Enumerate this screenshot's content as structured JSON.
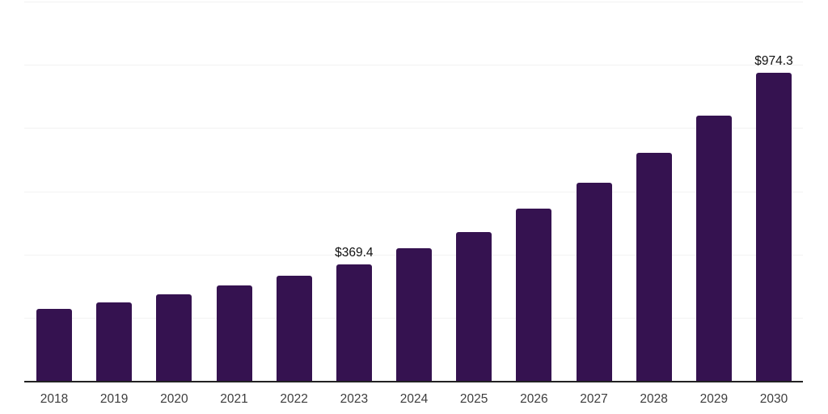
{
  "chart_data": {
    "type": "bar",
    "title": "",
    "categories": [
      "2018",
      "2019",
      "2020",
      "2021",
      "2022",
      "2023",
      "2024",
      "2025",
      "2026",
      "2027",
      "2028",
      "2029",
      "2030"
    ],
    "values": [
      228,
      248,
      275,
      301,
      332,
      369.4,
      419,
      471,
      544,
      626,
      721,
      839,
      974.3
    ],
    "value_labels": {
      "2023": "$369.4",
      "2030": "$974.3"
    },
    "unit_prefix": "$",
    "xlabel": "",
    "ylabel": "",
    "ylim": [
      0,
      1200
    ],
    "y_gridline_step": 200,
    "grid": "horizontal-only",
    "legend": "none",
    "y_axis_labels_visible": false,
    "colors": {
      "bar": "#351250",
      "axis_line": "#222222",
      "gridline": "#f2f2f2",
      "tick_label": "#3d3d3d",
      "value_label": "#111111",
      "background": "#ffffff"
    }
  }
}
